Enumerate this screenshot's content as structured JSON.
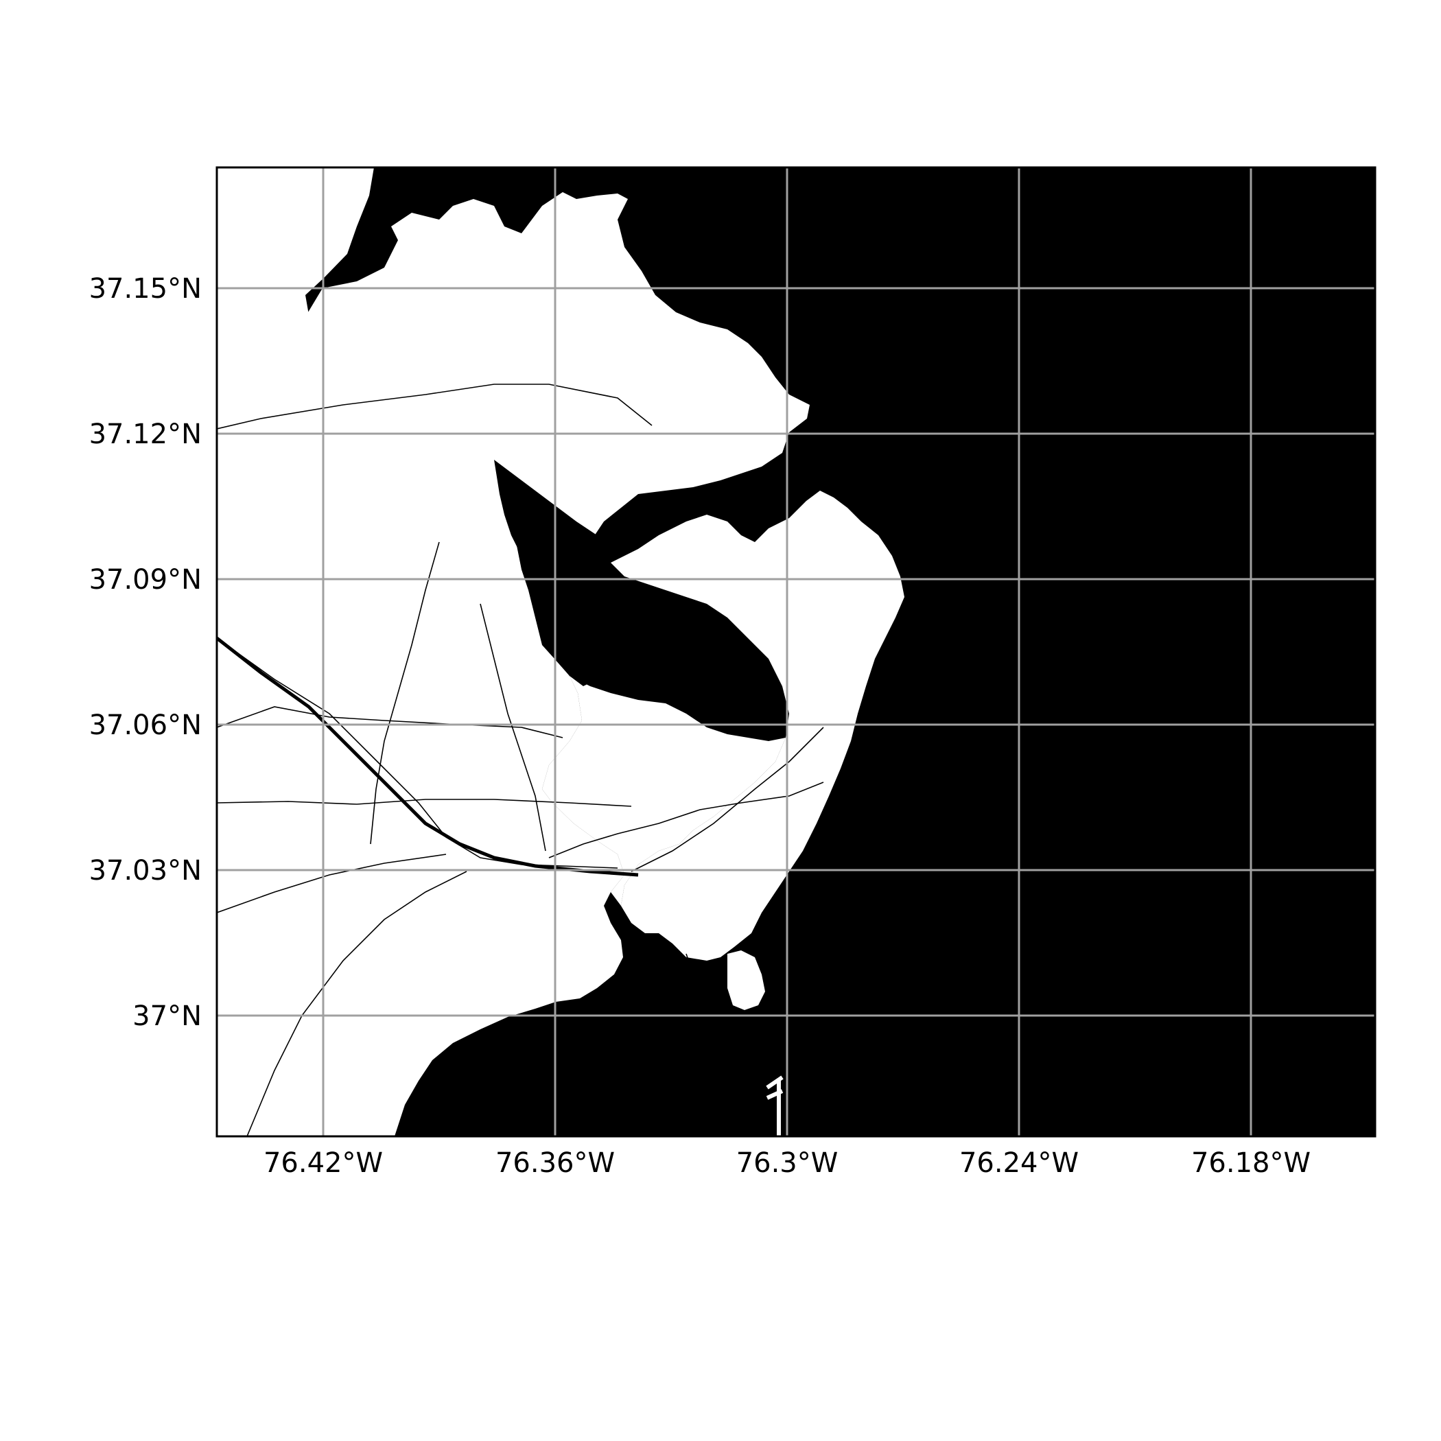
{
  "map": {
    "projection": "PlateCarree",
    "extent": {
      "lon_min": -76.4431,
      "lon_max": -76.1431,
      "lat_min": 36.9753,
      "lat_max": 37.1753
    },
    "land_color": "#ffffff",
    "water_color": "#000000",
    "gridline_color": "#a0a0a0",
    "grid": true,
    "x_ticks": [
      {
        "value": -76.42,
        "label": "76.42°W"
      },
      {
        "value": -76.36,
        "label": "76.36°W"
      },
      {
        "value": -76.3,
        "label": "76.3°W"
      },
      {
        "value": -76.24,
        "label": "76.24°W"
      },
      {
        "value": -76.18,
        "label": "76.18°W"
      }
    ],
    "y_ticks": [
      {
        "value": 37.15,
        "label": "37.15°N"
      },
      {
        "value": 37.12,
        "label": "37.12°N"
      },
      {
        "value": 37.09,
        "label": "37.09°N"
      },
      {
        "value": 37.06,
        "label": "37.06°N"
      },
      {
        "value": 37.03,
        "label": "37.03°N"
      },
      {
        "value": 37.0,
        "label": "37°N"
      }
    ]
  }
}
